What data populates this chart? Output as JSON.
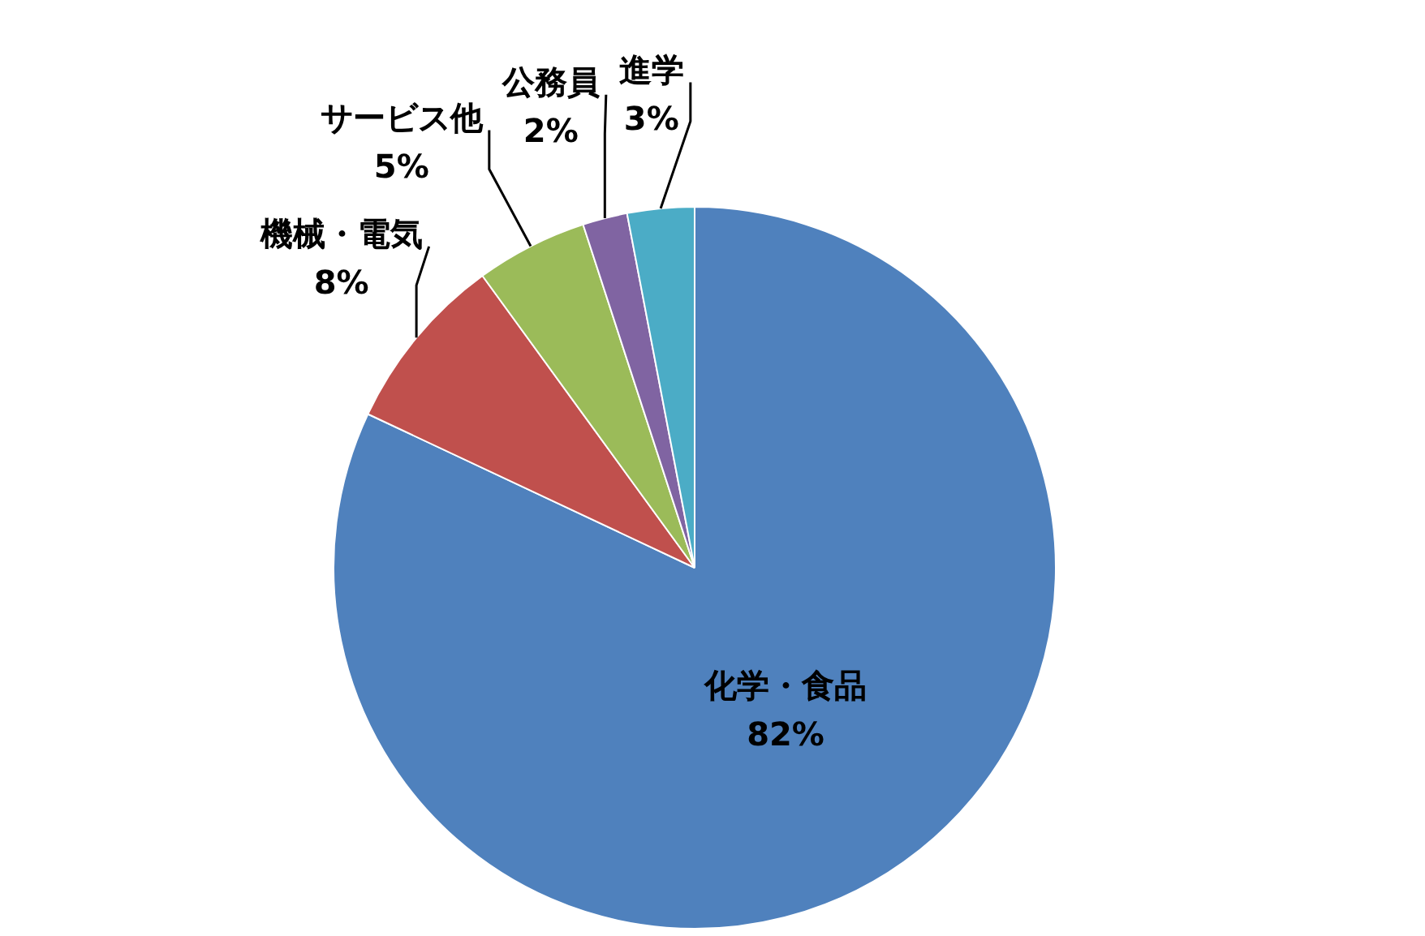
{
  "chart_data": {
    "type": "pie",
    "categories": [
      "化学・食品",
      "機械・電気",
      "サービス他",
      "公務員",
      "進学"
    ],
    "values": [
      82,
      8,
      5,
      2,
      3
    ],
    "value_labels": [
      "82%",
      "8%",
      "5%",
      "2%",
      "3%"
    ],
    "colors": [
      "#4f81bd",
      "#c0504d",
      "#9bbb59",
      "#8064a2",
      "#4bacc6"
    ],
    "legend": false
  }
}
